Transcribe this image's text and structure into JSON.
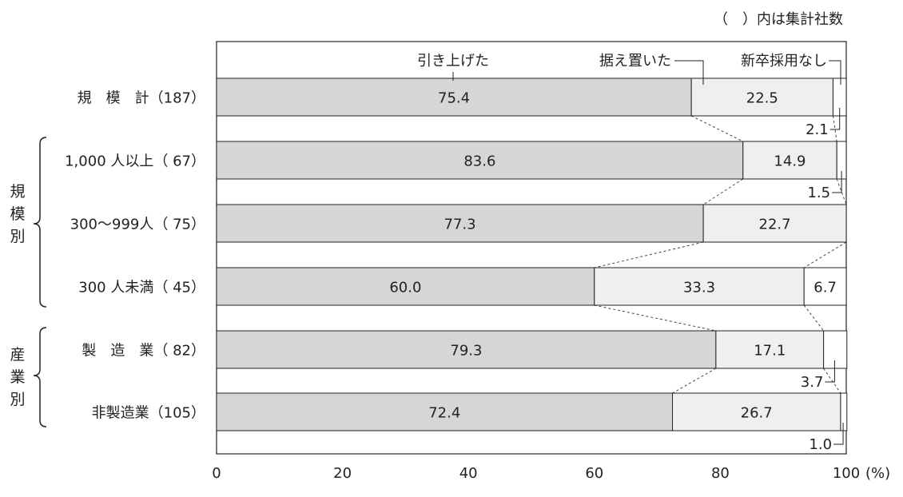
{
  "note": "（　）内は集計社数",
  "legend": {
    "raised": "引き上げた",
    "kept": "据え置いた",
    "none": "新卒採用なし"
  },
  "groups": [
    {
      "label": "規模別"
    },
    {
      "label": "産業別"
    }
  ],
  "chart_data": {
    "type": "bar",
    "stacked": true,
    "orientation": "horizontal",
    "categories": [
      "規　模　計（187）",
      "1,000 人以上（ 67）",
      "300～999人（ 75）",
      "300 人未満（ 45）",
      "製　造　業（ 82）",
      "非製造業（105）"
    ],
    "series": [
      {
        "name": "引き上げた",
        "values": [
          75.4,
          83.6,
          77.3,
          60.0,
          79.3,
          72.4
        ],
        "color": "#d6d6d6"
      },
      {
        "name": "据え置いた",
        "values": [
          22.5,
          14.9,
          22.7,
          33.3,
          17.1,
          26.7
        ],
        "color": "#efefef"
      },
      {
        "name": "新卒採用なし",
        "values": [
          2.1,
          1.5,
          0.0,
          6.7,
          3.7,
          1.0
        ],
        "color": "#ffffff"
      }
    ],
    "xlim": [
      0,
      100
    ],
    "xticks": [
      0,
      20,
      40,
      60,
      80,
      100
    ],
    "xunit": "(%)",
    "outside_labels": [
      "2.1",
      "1.5",
      "",
      "",
      "3.7",
      "1.0"
    ]
  }
}
